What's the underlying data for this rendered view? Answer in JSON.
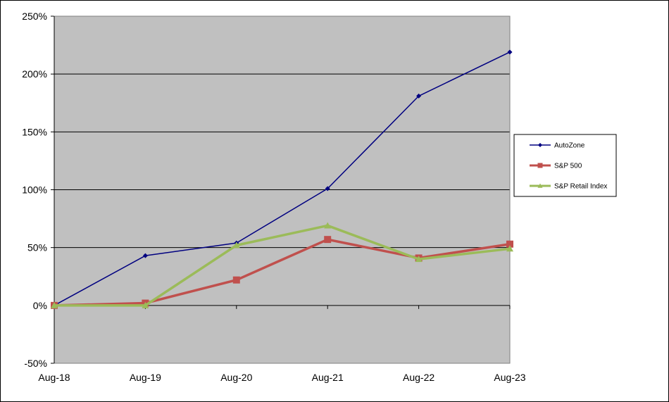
{
  "chart_data": {
    "type": "line",
    "title": "",
    "xlabel": "",
    "ylabel": "",
    "categories": [
      "Aug-18",
      "Aug-19",
      "Aug-20",
      "Aug-21",
      "Aug-22",
      "Aug-23"
    ],
    "y_ticks": [
      -50,
      0,
      50,
      100,
      150,
      200,
      250
    ],
    "y_tick_labels": [
      "-50%",
      "0%",
      "50%",
      "100%",
      "150%",
      "200%",
      "250%"
    ],
    "ylim": [
      -50,
      250
    ],
    "grid": "horizontal",
    "legend_position": "right",
    "plot_background": "#c0c0c0",
    "series": [
      {
        "name": "AutoZone",
        "color": "#000080",
        "marker": "diamond",
        "values": [
          0,
          43,
          54,
          101,
          181,
          219
        ]
      },
      {
        "name": "S&P 500",
        "color": "#c0504d",
        "marker": "square",
        "values": [
          0,
          2,
          22,
          57,
          41,
          53
        ]
      },
      {
        "name": "S&P Retail Index",
        "color": "#9bbb59",
        "marker": "triangle",
        "values": [
          0,
          0,
          52,
          69,
          40,
          49
        ]
      }
    ]
  }
}
